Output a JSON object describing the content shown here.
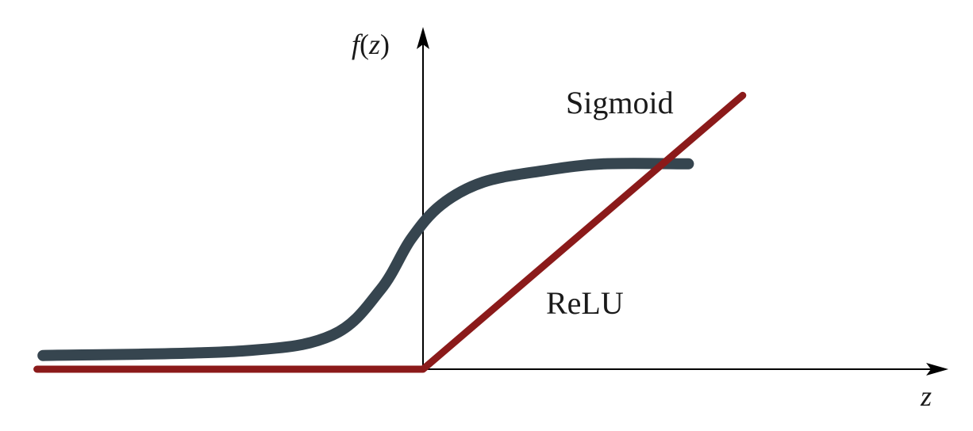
{
  "chart_data": {
    "type": "line",
    "title": "",
    "xlabel_italic": "z",
    "ylabel_parts": {
      "func": "f",
      "open": "(",
      "arg": "z",
      "close": ")"
    },
    "grid": false,
    "series": [
      {
        "name": "Sigmoid",
        "color": "#36454f",
        "points": [
          [
            -6.3,
            0.06
          ],
          [
            -3,
            0.08
          ],
          [
            -1.5,
            0.15
          ],
          [
            -0.7,
            0.35
          ],
          [
            -0.2,
            0.57
          ],
          [
            0.3,
            0.72
          ],
          [
            1,
            0.82
          ],
          [
            2,
            0.87
          ],
          [
            3,
            0.9
          ],
          [
            4.4,
            0.9
          ]
        ]
      },
      {
        "name": "ReLU",
        "color": "#8b1a1a",
        "points": [
          [
            -6.4,
            0
          ],
          [
            0,
            0
          ],
          [
            5.3,
            1.2
          ]
        ]
      }
    ]
  }
}
